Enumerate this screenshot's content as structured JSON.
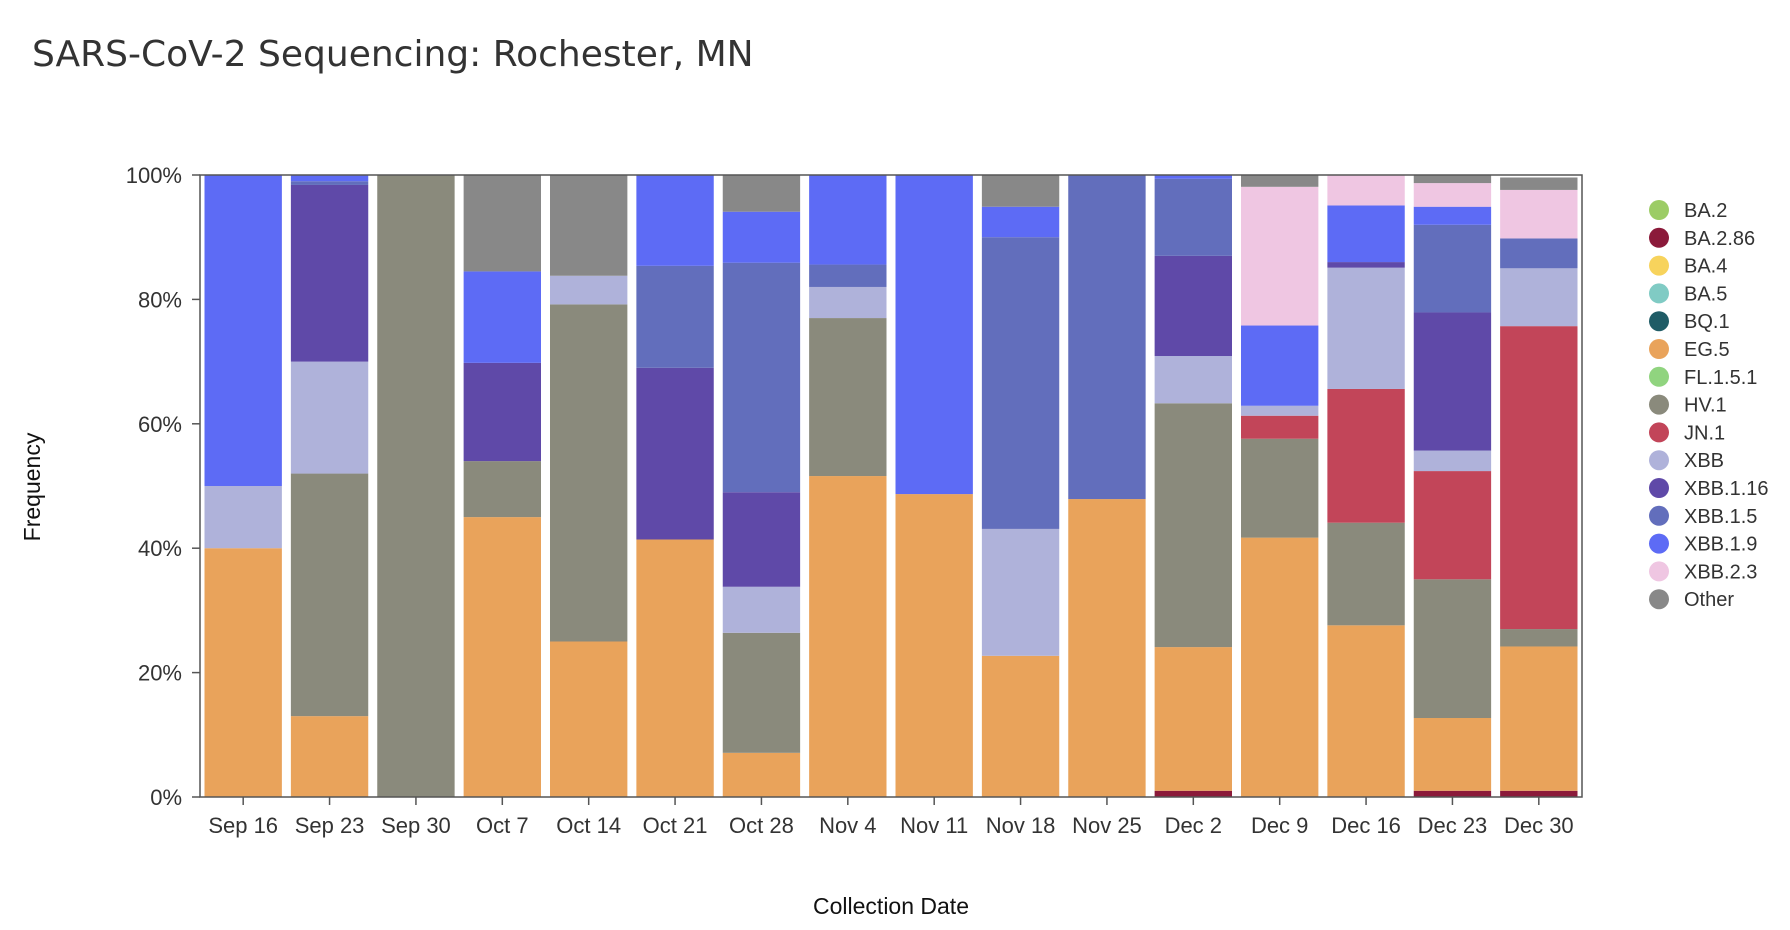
{
  "chart_data": {
    "type": "bar",
    "stacked": true,
    "title": "SARS-CoV-2 Sequencing: Rochester, MN",
    "xlabel": "Collection Date",
    "ylabel": "Frequency",
    "ylim": [
      0,
      100
    ],
    "y_ticks": [
      "0%",
      "20%",
      "40%",
      "60%",
      "80%",
      "100%"
    ],
    "legend_position": "right",
    "categories": [
      "Sep 16",
      "Sep 23",
      "Sep 30",
      "Oct 7",
      "Oct 14",
      "Oct 21",
      "Oct 28",
      "Nov 4",
      "Nov 11",
      "Nov 18",
      "Nov 25",
      "Dec 2",
      "Dec 9",
      "Dec 16",
      "Dec 23",
      "Dec 30"
    ],
    "series": [
      {
        "name": "BA.2",
        "color": "#9ccc65",
        "values": [
          0,
          0,
          0,
          0,
          0,
          0,
          0,
          0,
          0,
          0,
          0,
          0,
          0,
          0,
          0,
          0
        ]
      },
      {
        "name": "BA.2.86",
        "color": "#8b1a3a",
        "values": [
          0,
          0,
          0,
          0,
          0,
          0,
          0,
          0,
          0,
          0,
          0,
          1,
          0,
          0,
          1,
          1
        ]
      },
      {
        "name": "BA.4",
        "color": "#f7d35c",
        "values": [
          0,
          0,
          0,
          0,
          0,
          0,
          0,
          0,
          0,
          0,
          0,
          0,
          0,
          0,
          0,
          0
        ]
      },
      {
        "name": "BA.5",
        "color": "#80cbc4",
        "values": [
          0,
          0,
          0,
          0,
          0,
          0,
          0,
          0,
          0,
          0,
          0,
          0,
          0,
          0,
          0,
          0
        ]
      },
      {
        "name": "BQ.1",
        "color": "#1f5c66",
        "values": [
          0,
          0,
          0,
          0,
          0,
          0,
          0,
          0,
          0,
          0,
          0,
          0,
          0,
          0,
          0,
          0
        ]
      },
      {
        "name": "EG.5",
        "color": "#e9a35b",
        "values": [
          40,
          13,
          0,
          45,
          25,
          41.4,
          7.1,
          51.6,
          48.7,
          22.7,
          47.9,
          23.1,
          41.7,
          27.6,
          11.7,
          23.2
        ]
      },
      {
        "name": "FL.1.5.1",
        "color": "#90d47f",
        "values": [
          0,
          0,
          0,
          0,
          0,
          0,
          0,
          0,
          0,
          0,
          0,
          0,
          0,
          0,
          0,
          0
        ]
      },
      {
        "name": "HV.1",
        "color": "#8a8a7c",
        "values": [
          0,
          39,
          100,
          9,
          54.2,
          0,
          19.3,
          25.4,
          0,
          0,
          0,
          39.2,
          15.9,
          16.5,
          22.3,
          2.8
        ]
      },
      {
        "name": "JN.1",
        "color": "#c24559",
        "values": [
          0,
          0,
          0,
          0,
          0,
          0,
          0,
          0,
          0,
          0,
          0,
          0,
          3.7,
          21.5,
          17.4,
          48.7
        ]
      },
      {
        "name": "XBB",
        "color": "#afb2da",
        "values": [
          10,
          18,
          0,
          0,
          4.6,
          0,
          7.4,
          5,
          0,
          20.4,
          0,
          7.6,
          1.6,
          19.5,
          3.3,
          9.3
        ]
      },
      {
        "name": "XBB.1.16",
        "color": "#5f49a8",
        "values": [
          0,
          28.4,
          0,
          15.8,
          0,
          27.6,
          15.2,
          0,
          0,
          0,
          0,
          16.1,
          0,
          0.9,
          22.2,
          0
        ]
      },
      {
        "name": "XBB.1.5",
        "color": "#626ebc",
        "values": [
          0,
          0.6,
          0,
          0,
          0,
          16.4,
          36.9,
          3.6,
          0,
          46.9,
          52.1,
          12.4,
          0,
          0,
          14.1,
          4.8
        ]
      },
      {
        "name": "XBB.1.9",
        "color": "#5d6bf5",
        "values": [
          50,
          1,
          0,
          14.7,
          0,
          14.6,
          8.2,
          14.4,
          51.3,
          4.9,
          0,
          1,
          12.9,
          9.1,
          2.9,
          0
        ]
      },
      {
        "name": "XBB.2.3",
        "color": "#efc6e2",
        "values": [
          0,
          0,
          0,
          0,
          0,
          0,
          0,
          0,
          0,
          0,
          0,
          0,
          22.3,
          5,
          3.8,
          7.8
        ]
      },
      {
        "name": "Other",
        "color": "#888888",
        "values": [
          0,
          0,
          0,
          15.5,
          16.2,
          0,
          5.9,
          0,
          0,
          5.1,
          0,
          0,
          2,
          0,
          1.3,
          2
        ]
      }
    ]
  }
}
